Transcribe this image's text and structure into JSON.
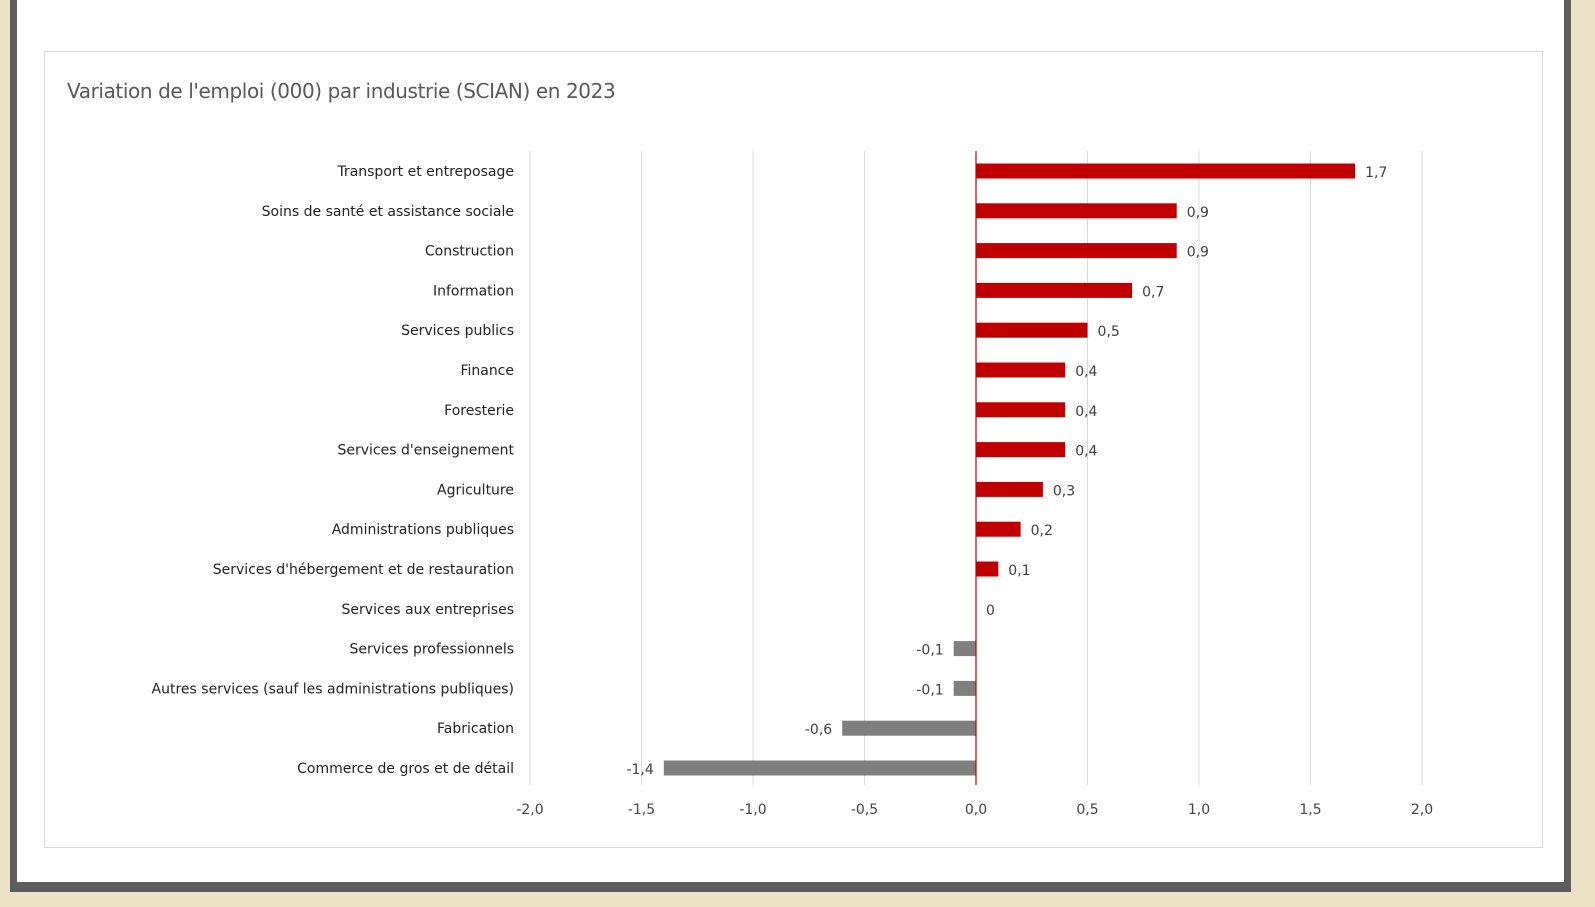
{
  "chart_data": {
    "type": "bar",
    "orientation": "horizontal",
    "title": "Variation de l'emploi (000) par industrie (SCIAN) en 2023",
    "categories": [
      "Transport et entreposage",
      "Soins de santé et assistance sociale",
      "Construction",
      "Information",
      "Services publics",
      "Finance",
      "Foresterie",
      "Services d'enseignement",
      "Agriculture",
      "Administrations publiques",
      "Services d'hébergement et de restauration",
      "Services aux entreprises",
      "Services professionnels",
      "Autres services (sauf les administrations publiques)",
      "Fabrication",
      "Commerce de gros et de détail"
    ],
    "values": [
      1.7,
      0.9,
      0.9,
      0.7,
      0.5,
      0.4,
      0.4,
      0.4,
      0.3,
      0.2,
      0.1,
      0,
      -0.1,
      -0.1,
      -0.6,
      -1.4
    ],
    "value_labels": [
      "1,7",
      "0,9",
      "0,9",
      "0,7",
      "0,5",
      "0,4",
      "0,4",
      "0,4",
      "0,3",
      "0,2",
      "0,1",
      "0",
      "-0,1",
      "-0,1",
      "-0,6",
      "-1,4"
    ],
    "xlim": [
      -2.0,
      2.0
    ],
    "xticks": [
      -2.0,
      -1.5,
      -1.0,
      -0.5,
      0.0,
      0.5,
      1.0,
      1.5,
      2.0
    ],
    "xtick_labels": [
      "-2,0",
      "-1,5",
      "-1,0",
      "-0,5",
      "0,0",
      "0,5",
      "1,0",
      "1,5",
      "2,0"
    ],
    "grid": true,
    "legend": "none",
    "colors": {
      "positive": "#c00000",
      "negative": "#7f7f7f",
      "zero_line": "#c00000",
      "grid": "#d9d9d9"
    }
  }
}
